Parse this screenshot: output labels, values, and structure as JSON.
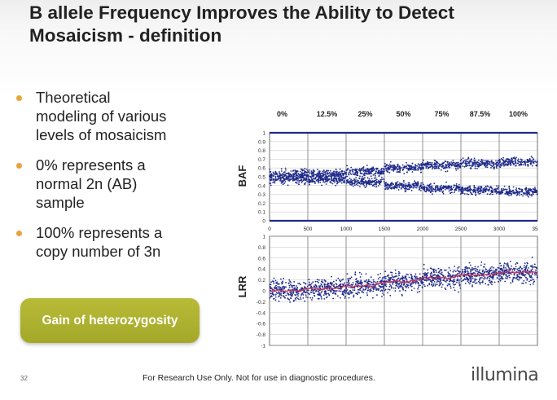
{
  "slide": {
    "title_lines": [
      "B allele Frequency Improves the Ability to Detect",
      "Mosaicism - definition"
    ],
    "bullets": [
      {
        "lines": [
          "Theoretical",
          "modeling of various",
          "levels of mosaicism"
        ]
      },
      {
        "lines": [
          "0% represents a",
          "normal 2n (AB)",
          "sample"
        ]
      },
      {
        "lines": [
          "100% represents a",
          "copy number of 3n"
        ]
      }
    ],
    "pill_label": "Gain of heterozygosity",
    "page_number": "32",
    "disclaimer": "For Research Use Only.  Not for use in diagnostic procedures.",
    "logo_text": "illumina"
  },
  "colors": {
    "accent": "#e8a33b",
    "pill": "#aeb22f",
    "points": "#1f2a8a",
    "lrr_trend": "#c0305a"
  },
  "chart_data": [
    {
      "type": "scatter",
      "panel": "BAF",
      "ylabel": "BAF",
      "ylim": [
        0,
        1
      ],
      "yticks": [
        "1",
        "0.9",
        "0.8",
        "0.7",
        "0.6",
        "0.5",
        "0.4",
        "0.3",
        "0.2",
        "0.1",
        "0"
      ],
      "xlim": [
        0,
        3500
      ],
      "xticks": [
        "0",
        "500",
        "1000",
        "1500",
        "2000",
        "2500",
        "3000",
        "35"
      ],
      "mosaicism_levels": [
        "0%",
        "12.5%",
        "25%",
        "50%",
        "75%",
        "87.5%",
        "100%"
      ],
      "segments": [
        {
          "level": "0%",
          "x": [
            0,
            500
          ],
          "bands": [
            0.5,
            0.5
          ]
        },
        {
          "level": "12.5%",
          "x": [
            500,
            1000
          ],
          "bands": [
            0.53,
            0.47
          ]
        },
        {
          "level": "25%",
          "x": [
            1000,
            1500
          ],
          "bands": [
            0.56,
            0.44
          ]
        },
        {
          "level": "50%",
          "x": [
            1500,
            2000
          ],
          "bands": [
            0.6,
            0.4
          ]
        },
        {
          "level": "75%",
          "x": [
            2000,
            2500
          ],
          "bands": [
            0.63,
            0.37
          ]
        },
        {
          "level": "87.5%",
          "x": [
            2500,
            3000
          ],
          "bands": [
            0.65,
            0.35
          ]
        },
        {
          "level": "100%",
          "x": [
            3000,
            3500
          ],
          "bands": [
            0.67,
            0.33
          ]
        }
      ],
      "homozygous_lines": [
        1,
        0
      ]
    },
    {
      "type": "scatter",
      "panel": "LRR",
      "ylabel": "LRR",
      "ylim": [
        -1,
        1
      ],
      "yticks": [
        "1",
        "0.8",
        "0.6",
        "0.4",
        "0.2",
        "0",
        "-0.2",
        "-0.4",
        "-0.6",
        "-0.8",
        "-1"
      ],
      "xlim": [
        0,
        3500
      ],
      "segments": [
        {
          "level": "0%",
          "x": [
            0,
            500
          ],
          "mean": 0.0
        },
        {
          "level": "12.5%",
          "x": [
            500,
            1000
          ],
          "mean": 0.04
        },
        {
          "level": "25%",
          "x": [
            1000,
            1500
          ],
          "mean": 0.09
        },
        {
          "level": "50%",
          "x": [
            1500,
            2000
          ],
          "mean": 0.17
        },
        {
          "level": "75%",
          "x": [
            2000,
            2500
          ],
          "mean": 0.24
        },
        {
          "level": "87.5%",
          "x": [
            2500,
            3000
          ],
          "mean": 0.29
        },
        {
          "level": "100%",
          "x": [
            3000,
            3500
          ],
          "mean": 0.34
        }
      ]
    }
  ]
}
